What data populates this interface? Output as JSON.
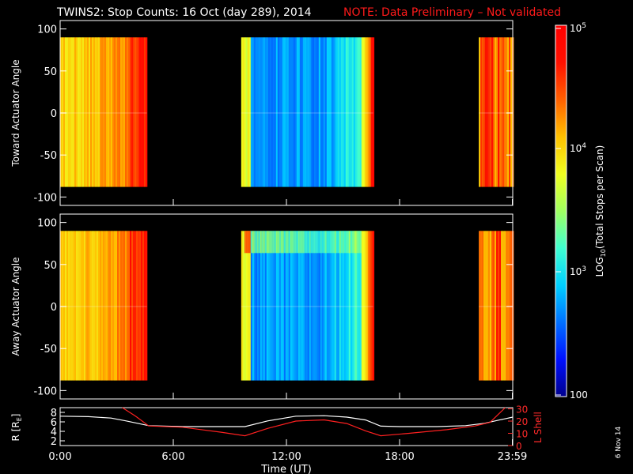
{
  "title": {
    "main": "TWINS2: Stop Counts: 16 Oct (day 289), 2014",
    "note": "NOTE: Data Preliminary – Not validated"
  },
  "chart_data": [
    {
      "type": "heatmap",
      "ylabel": "Toward Actuator Angle",
      "ylim": [
        -110,
        110
      ],
      "yticks": [
        "100",
        "50",
        "0",
        "-50",
        "-100"
      ],
      "x_unit": "hours UT",
      "data_segments": [
        {
          "start": 0.0,
          "end": 4.6,
          "level": "high (yellow-orange to red)"
        },
        {
          "start": 9.6,
          "end": 16.6,
          "level": "low (blue) center, rising to red near 16.5"
        },
        {
          "start": 22.2,
          "end": 23.98,
          "level": "mixed orange/red"
        }
      ],
      "angle_range": [
        -88,
        90
      ]
    },
    {
      "type": "heatmap",
      "ylabel": "Away Actuator Angle",
      "ylim": [
        -110,
        110
      ],
      "yticks": [
        "100",
        "50",
        "0",
        "-50",
        "-100"
      ],
      "x_unit": "hours UT",
      "data_segments": [
        {
          "start": 0.0,
          "end": 4.6,
          "level": "high (yellow-orange to red)"
        },
        {
          "start": 9.6,
          "end": 16.6,
          "level": "low (blue) center, elevated near +75 deg"
        },
        {
          "start": 22.2,
          "end": 23.98,
          "level": "mixed orange/red"
        }
      ],
      "angle_range": [
        -88,
        90
      ]
    },
    {
      "type": "line",
      "xlabel": "Time (UT)",
      "xticks": [
        "0:00",
        "6:00",
        "12:00",
        "18:00",
        "23:59"
      ],
      "xlim": [
        0,
        24
      ],
      "ylabel_left": "R [R",
      "ylabel_left_sub": "E",
      "ylabel_left_end": "]",
      "ylim_left": [
        1,
        9
      ],
      "yticks_left": [
        "8",
        "6",
        "4",
        "2"
      ],
      "ylabel_right": "L Shell",
      "ylim_right": [
        0,
        31
      ],
      "yticks_right": [
        "30",
        "20",
        "10",
        "0"
      ],
      "series": [
        {
          "axis": "left",
          "color": "#ffffff",
          "x": [
            0,
            1.5,
            2.7,
            3.5,
            4.7,
            6.5,
            8.5,
            9.8,
            11.0,
            12.5,
            14.0,
            15.2,
            16.2,
            17.0,
            18.0,
            20.0,
            21.5,
            22.5,
            23.3,
            24.0
          ],
          "y": [
            7.2,
            7.1,
            6.8,
            6.2,
            5.2,
            5.0,
            5.0,
            5.0,
            6.2,
            7.2,
            7.3,
            7.0,
            6.4,
            5.1,
            5.0,
            5.0,
            5.2,
            5.7,
            6.4,
            7.0
          ]
        },
        {
          "axis": "right",
          "color": "#ff2020",
          "x": [
            3.3,
            4.0,
            4.7,
            6.5,
            8.5,
            9.8,
            11.0,
            12.5,
            14.0,
            15.2,
            16.2,
            17.0,
            18.5,
            20.5,
            22.0,
            22.8,
            23.2,
            23.6
          ],
          "y": [
            31,
            24,
            16,
            15,
            11,
            8,
            14,
            20,
            21,
            18,
            12,
            8,
            10,
            13,
            16,
            19,
            25,
            31
          ]
        }
      ]
    }
  ],
  "colorbar": {
    "label_prefix": "LOG",
    "label_sub": "10",
    "label_suffix": "(Total Stops per Scan)",
    "ticks": [
      {
        "base": "10",
        "exp": "5"
      },
      {
        "base": "10",
        "exp": "4"
      },
      {
        "base": "10",
        "exp": "3"
      },
      {
        "base": "100",
        "exp": ""
      }
    ],
    "colors": [
      "#00008c",
      "#0010ff",
      "#0070ff",
      "#00d0ff",
      "#40ffd0",
      "#a0ff60",
      "#f0ff20",
      "#ffc000",
      "#ff6000",
      "#ff1000",
      "#ff0000"
    ]
  },
  "stamp": "6 Nov 14"
}
